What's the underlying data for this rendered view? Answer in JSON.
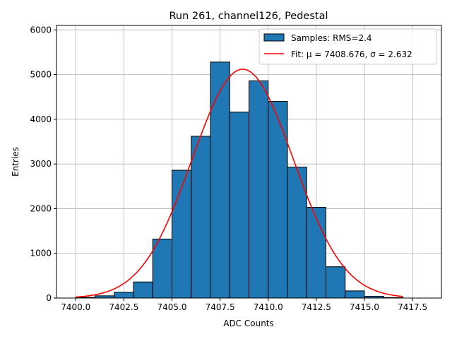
{
  "chart_data": {
    "type": "bar",
    "title": "Run 261, channel126, Pedestal",
    "xlabel": "ADC Counts",
    "ylabel": "Entries",
    "xlim": [
      7399.0,
      7419.0
    ],
    "ylim": [
      0,
      6100
    ],
    "xticks": [
      7400.0,
      7402.5,
      7405.0,
      7407.5,
      7410.0,
      7412.5,
      7415.0,
      7417.5
    ],
    "xtick_labels": [
      "7400.0",
      "7402.5",
      "7405.0",
      "7407.5",
      "7410.0",
      "7412.5",
      "7415.0",
      "7417.5"
    ],
    "yticks": [
      0,
      1000,
      2000,
      3000,
      4000,
      5000,
      6000
    ],
    "ytick_labels": [
      "0",
      "1000",
      "2000",
      "3000",
      "4000",
      "5000",
      "6000"
    ],
    "grid": true,
    "legend_position": "top-right",
    "bin_edges": [
      7400,
      7401,
      7402,
      7403,
      7404,
      7405,
      7406,
      7407,
      7408,
      7409,
      7410,
      7411,
      7412,
      7413,
      7414,
      7415,
      7416,
      7417,
      7418
    ],
    "series": [
      {
        "name": "Samples: RMS=2.4",
        "kind": "histogram",
        "color": "#1f77b4",
        "edgecolor": "#000000",
        "values": [
          15,
          50,
          130,
          360,
          1320,
          2860,
          3620,
          5280,
          4160,
          4860,
          4400,
          2930,
          2030,
          700,
          160,
          40,
          10,
          0
        ]
      },
      {
        "name": "Fit: μ = 7408.676, σ = 2.632",
        "kind": "gaussian-fit",
        "color": "#ff0000",
        "mu": 7408.676,
        "sigma": 2.632,
        "amplitude": 5120,
        "x_range": [
          7400,
          7417
        ]
      }
    ]
  }
}
